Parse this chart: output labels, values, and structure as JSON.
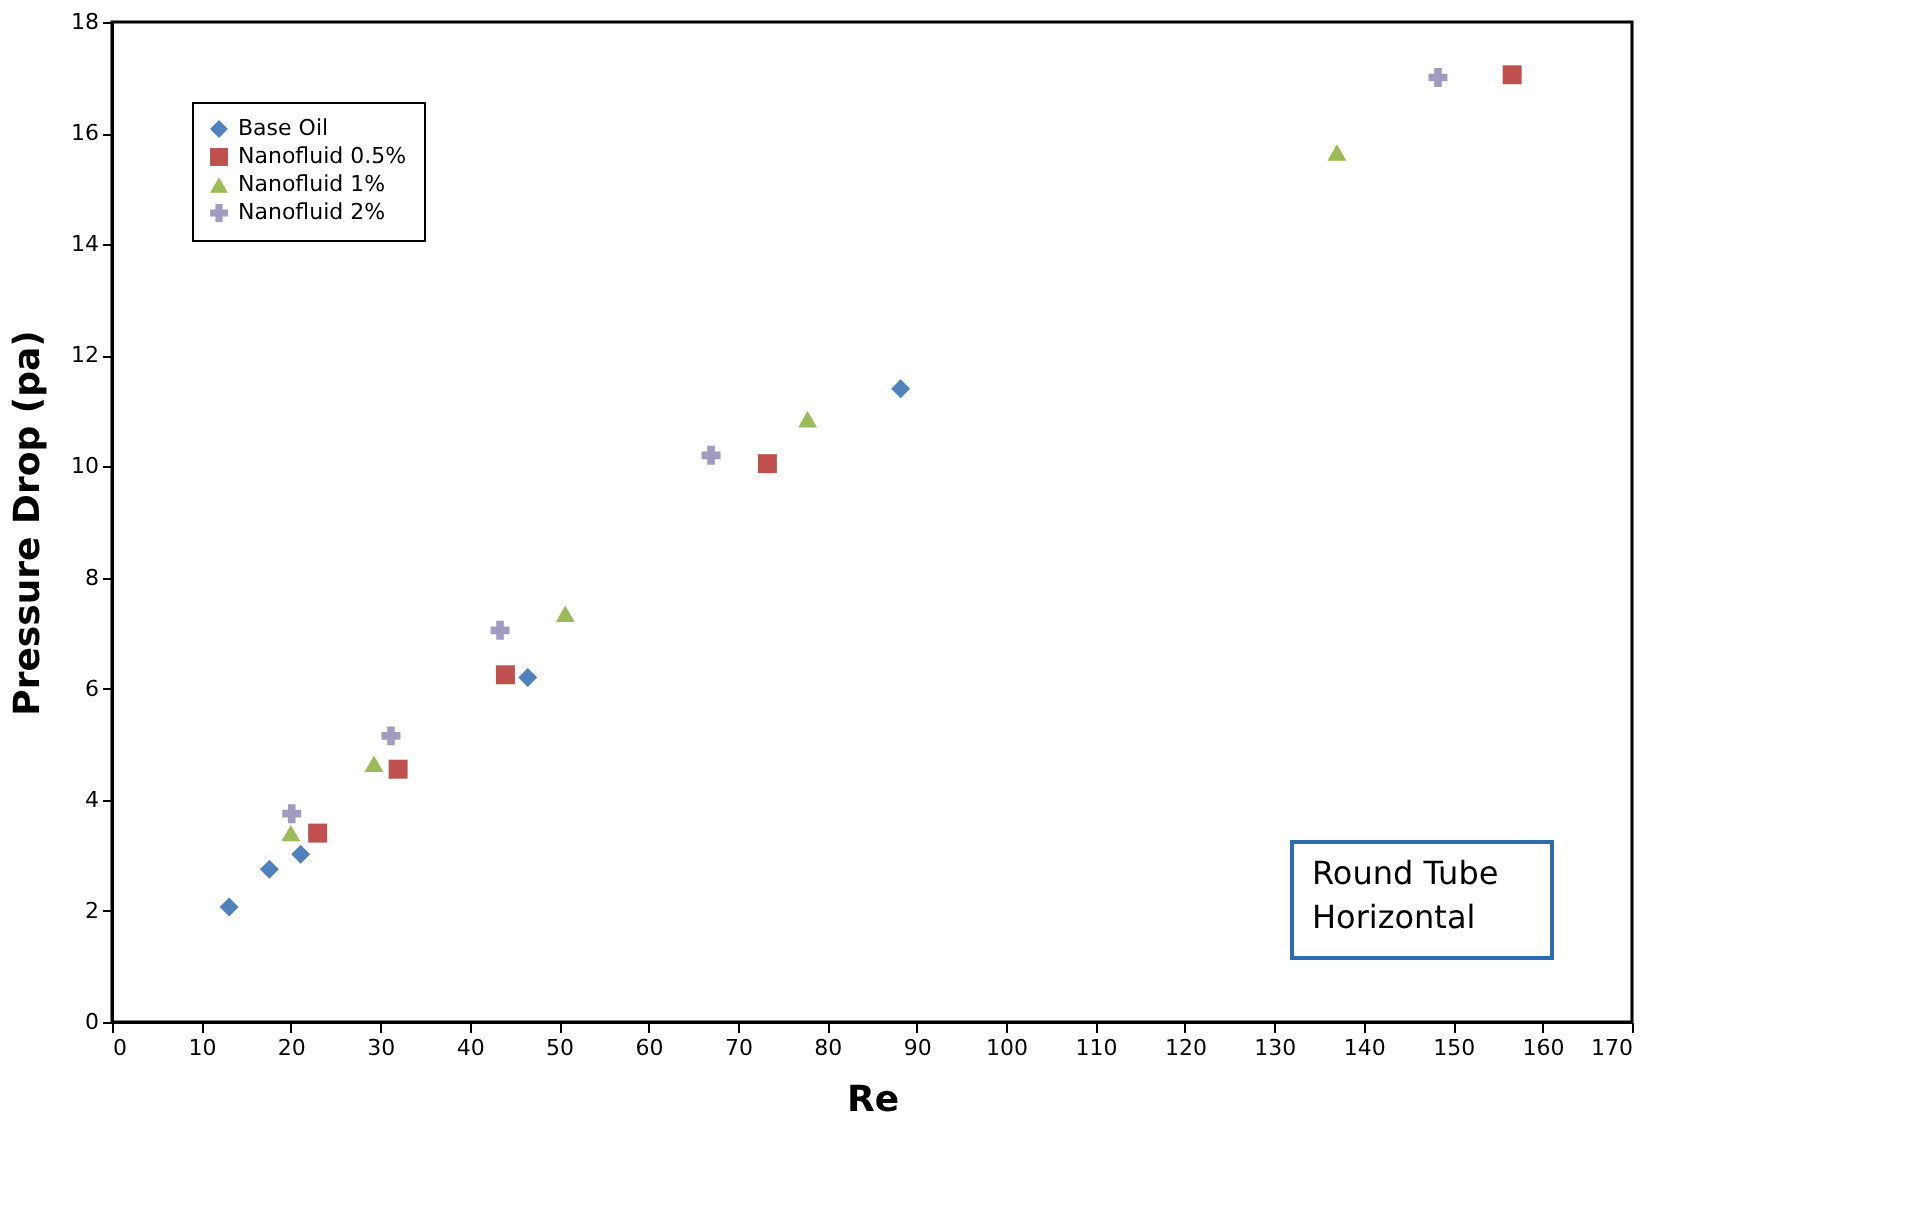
{
  "chart_data": {
    "type": "scatter",
    "xlabel": "Re",
    "ylabel": "Pressure Drop (pa)",
    "xlim": [
      0,
      170
    ],
    "xticks": [
      0,
      10,
      20,
      30,
      40,
      50,
      60,
      70,
      80,
      90,
      100,
      110,
      120,
      130,
      140,
      150,
      160,
      170
    ],
    "ylim": [
      0,
      18
    ],
    "yticks": [
      0,
      2,
      4,
      6,
      8,
      10,
      12,
      14,
      16,
      18
    ],
    "grid": false,
    "legend": "top left",
    "annotations": [
      "Round Tube\nHorizontal"
    ],
    "series": [
      {
        "name": "Base Oil",
        "color": "#4f81bd",
        "marker": "diamond",
        "x": [
          13.1,
          17.6,
          21.1,
          46.5,
          88.2
        ],
        "values": [
          2.07,
          2.75,
          3.02,
          6.2,
          11.4
        ]
      },
      {
        "name": "Nanofluid 0.5%",
        "color": "#c0504d",
        "marker": "square",
        "x": [
          23,
          32,
          44,
          73.3,
          156.6
        ],
        "values": [
          3.4,
          4.55,
          6.25,
          10.05,
          17.05
        ]
      },
      {
        "name": "Nanofluid 1%",
        "color": "#9bbb59",
        "marker": "triangle",
        "x": [
          20,
          29.3,
          50.7,
          77.8,
          137
        ],
        "values": [
          3.4,
          4.65,
          7.35,
          10.85,
          15.65
        ]
      },
      {
        "name": "Nanofluid 2%",
        "color": "#a09cc0",
        "marker": "cross",
        "x": [
          20.1,
          31.2,
          43.4,
          67,
          148.3
        ],
        "values": [
          3.75,
          5.15,
          7.05,
          10.2,
          17.0
        ]
      }
    ]
  }
}
